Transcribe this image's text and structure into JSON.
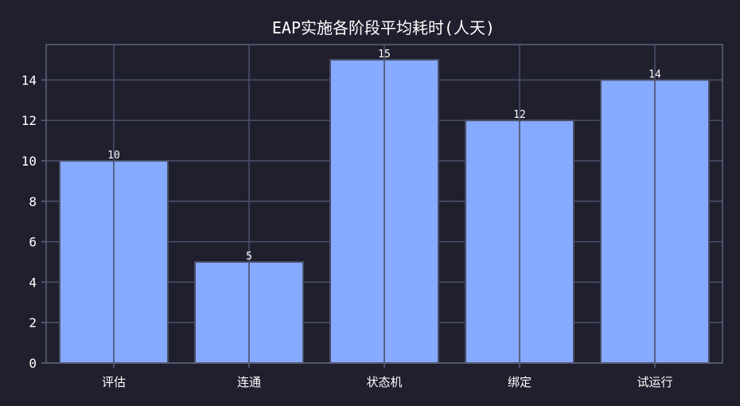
{
  "chart_data": {
    "type": "bar",
    "title": "EAP实施各阶段平均耗时(人天)",
    "xlabel": "",
    "ylabel": "",
    "categories": [
      "评估",
      "连通",
      "状态机",
      "绑定",
      "试运行"
    ],
    "values": [
      10,
      5,
      15,
      12,
      14
    ],
    "value_labels": [
      "10",
      "5",
      "15",
      "12",
      "14"
    ],
    "ylim": [
      0,
      15.75
    ],
    "yticks": [
      0,
      2,
      4,
      6,
      8,
      10,
      12,
      14
    ],
    "ytick_labels": [
      "0",
      "2",
      "4",
      "6",
      "8",
      "10",
      "12",
      "14"
    ],
    "grid": true,
    "legend": "none",
    "colors": {
      "background": "#1f1f2e",
      "bar_fill": "#86aaff",
      "bar_edge": "#4a4e68",
      "grid": "#4a4e68",
      "axis": "#5c6078",
      "text": "#ffffff"
    }
  }
}
